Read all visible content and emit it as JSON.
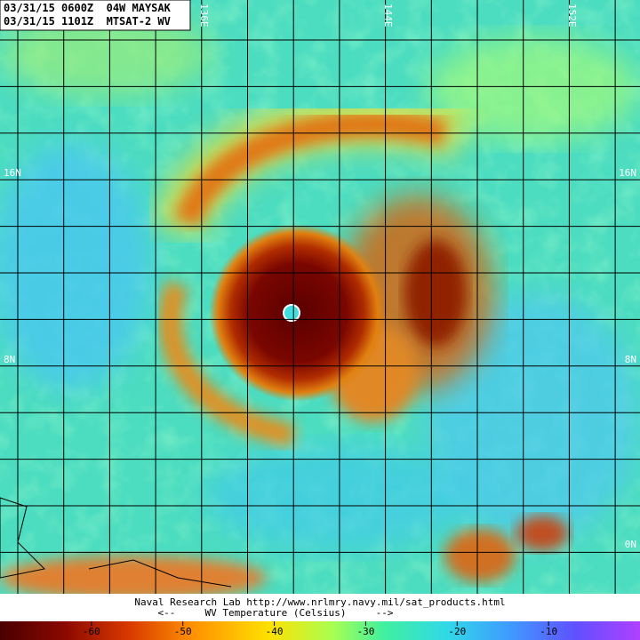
{
  "header": {
    "lines": [
      "03/31/15 0600Z  04W MAYSAK",
      "03/31/15 1101Z  MTSAT-2 WV"
    ]
  },
  "map": {
    "longitude_labels": [
      "136E",
      "144E",
      "152E"
    ],
    "latitude_labels_left": [
      "16N",
      "8N"
    ],
    "latitude_labels_right": [
      "16N",
      "8N",
      "0N"
    ]
  },
  "footer": {
    "credit": "Naval Research Lab http://www.nrlmry.navy.mil/sat_products.html",
    "legend_caption": "<--     WV Temperature (Celsius)     -->"
  },
  "colorbar": {
    "range": [
      -70,
      0
    ],
    "ticks": [
      -60,
      -50,
      -40,
      -30,
      -20,
      -10
    ]
  }
}
